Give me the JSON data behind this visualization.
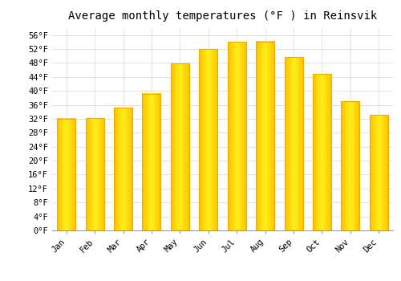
{
  "title": "Average monthly temperatures (°F ) in Reinsvik",
  "months": [
    "Jan",
    "Feb",
    "Mar",
    "Apr",
    "May",
    "Jun",
    "Jul",
    "Aug",
    "Sep",
    "Oct",
    "Nov",
    "Dec"
  ],
  "values": [
    32.0,
    32.2,
    35.2,
    39.2,
    47.8,
    52.0,
    54.0,
    54.1,
    49.6,
    44.8,
    37.0,
    33.1
  ],
  "bar_color_main": "#FFC020",
  "bar_color_edge": "#F5A800",
  "bar_color_light": "#FFE090",
  "background_color": "#FFFFFF",
  "plot_bg_color": "#FFFFFF",
  "grid_color": "#DDDDDD",
  "ytick_labels": [
    "0°F",
    "4°F",
    "8°F",
    "12°F",
    "16°F",
    "20°F",
    "24°F",
    "28°F",
    "32°F",
    "36°F",
    "40°F",
    "44°F",
    "48°F",
    "52°F",
    "56°F"
  ],
  "ytick_values": [
    0,
    4,
    8,
    12,
    16,
    20,
    24,
    28,
    32,
    36,
    40,
    44,
    48,
    52,
    56
  ],
  "ylim": [
    0,
    58
  ],
  "title_fontsize": 10,
  "tick_fontsize": 7.5,
  "font_family": "monospace",
  "bar_width": 0.65
}
